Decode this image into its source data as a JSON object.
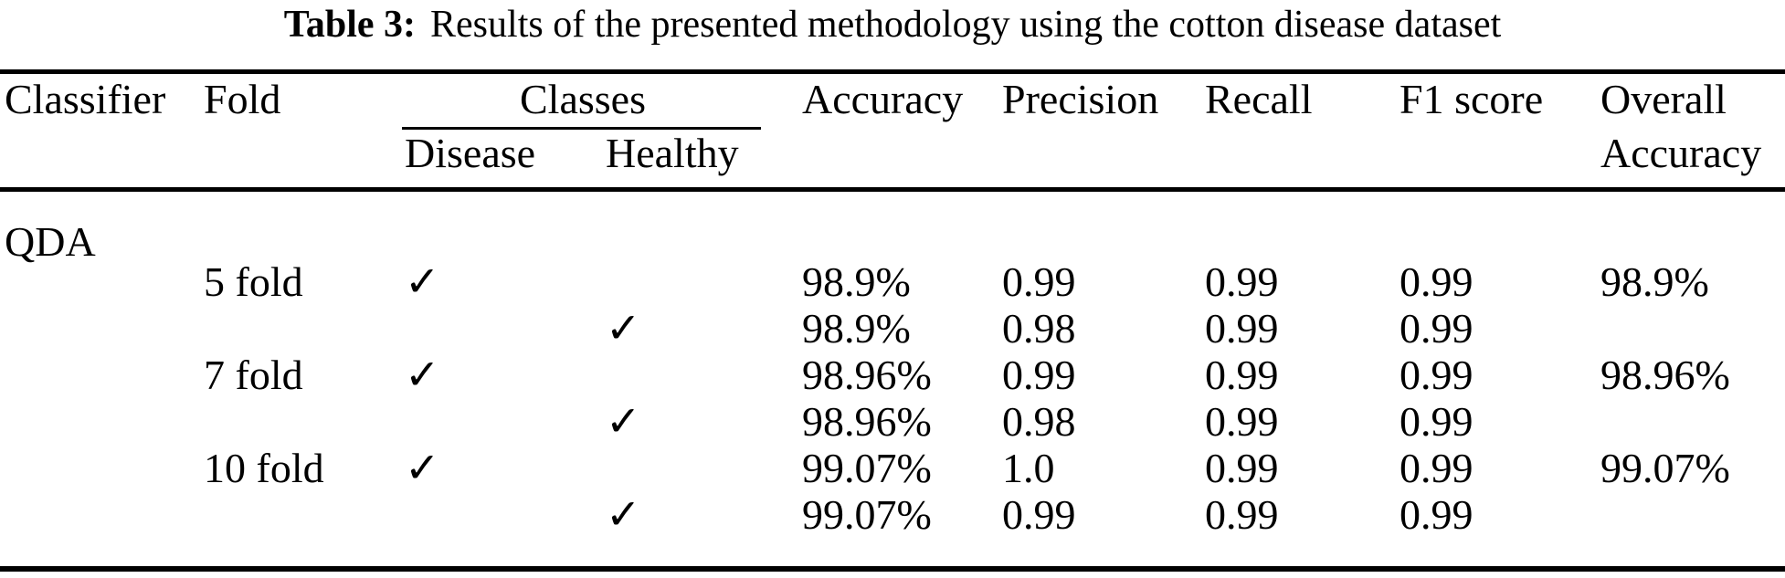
{
  "caption": {
    "label": "Table 3:",
    "text": "Results of the presented methodology using the cotton disease dataset"
  },
  "table": {
    "header": {
      "classifier": "Classifier",
      "fold": "Fold",
      "classes": "Classes",
      "disease": "Disease",
      "healthy": "Healthy",
      "accuracy": "Accuracy",
      "precision": "Precision",
      "recall": "Recall",
      "f1": "F1 score",
      "overall_line1": "Overall",
      "overall_line2": "Accuracy"
    },
    "checkmark_glyph": "✓",
    "rows": [
      [
        "QDA",
        "",
        "",
        "",
        "",
        "",
        "",
        "",
        ""
      ],
      [
        "",
        "5 fold",
        "✓",
        "",
        "98.9%",
        "0.99",
        "0.99",
        "0.99",
        "98.9%"
      ],
      [
        "",
        "",
        "",
        "✓",
        "98.9%",
        "0.98",
        "0.99",
        "0.99",
        ""
      ],
      [
        "",
        "7 fold",
        "✓",
        "",
        "98.96%",
        "0.99",
        "0.99",
        "0.99",
        "98.96%"
      ],
      [
        "",
        "",
        "",
        "✓",
        "98.96%",
        "0.98",
        "0.99",
        "0.99",
        ""
      ],
      [
        "",
        "10 fold",
        "✓",
        "",
        "99.07%",
        "1.0",
        "0.99",
        "0.99",
        "99.07%"
      ],
      [
        "",
        "",
        "",
        "✓",
        "99.07%",
        "0.99",
        "0.99",
        "0.99",
        ""
      ]
    ],
    "text_color": "#000000",
    "background_color": "#ffffff"
  }
}
